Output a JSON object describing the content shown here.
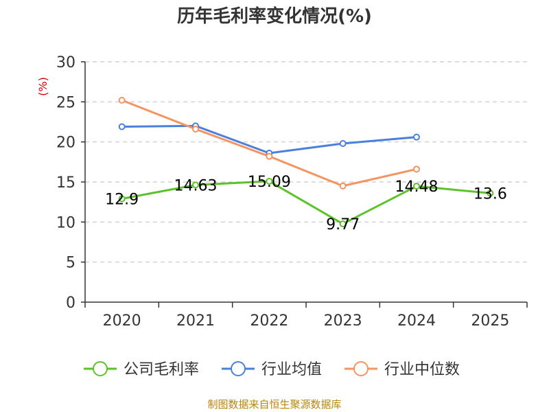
{
  "chart_data": {
    "type": "line",
    "title": "历年毛利率变化情况(%)",
    "ylabel": "(%)",
    "categories": [
      "2020",
      "2021",
      "2022",
      "2023",
      "2024",
      "2025"
    ],
    "ylim": [
      0,
      30
    ],
    "yticks": [
      0,
      5,
      10,
      15,
      20,
      25,
      30
    ],
    "grid": true,
    "legend_position": "bottom",
    "series": [
      {
        "name": "公司毛利率",
        "color": "#5cc22a",
        "values": [
          12.9,
          14.63,
          15.09,
          9.77,
          14.48,
          13.6
        ],
        "labels": [
          "12.9",
          "14.63",
          "15.09",
          "9.77",
          "14.48",
          "13.6"
        ]
      },
      {
        "name": "行业均值",
        "color": "#4a7fdc",
        "values": [
          21.9,
          22.0,
          18.6,
          19.8,
          20.6,
          null
        ]
      },
      {
        "name": "行业中位数",
        "color": "#f59361",
        "values": [
          25.2,
          21.6,
          18.2,
          14.5,
          16.6,
          null
        ]
      }
    ]
  },
  "source": "制图数据来自恒生聚源数据库"
}
